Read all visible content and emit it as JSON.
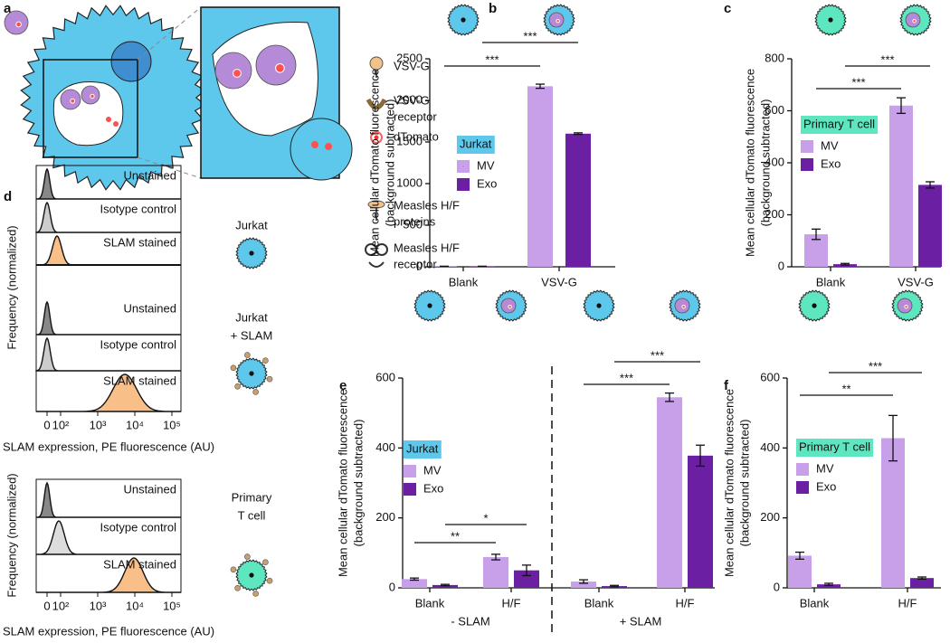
{
  "panel_a": {
    "label": "a",
    "legend": [
      {
        "lines": [
          "VSV-G"
        ]
      },
      {
        "lines": [
          "VSV-G",
          "receptor"
        ]
      },
      {
        "lines": [
          "dTomato"
        ]
      },
      {
        "lines": [
          "Measles H/F",
          "proteins"
        ]
      },
      {
        "lines": [
          "Measles H/F",
          "receptor"
        ]
      }
    ]
  },
  "panel_d": {
    "label": "d",
    "ylabel": "Frequency (normalized)",
    "xlabel": "SLAM expression, PE fluorescence (AU)",
    "xticks": [
      {
        "value": 0,
        "label": "0"
      },
      {
        "value": 100,
        "label": "10²"
      },
      {
        "value": 1000,
        "label": "10³"
      },
      {
        "value": 10000,
        "label": "10⁴"
      },
      {
        "value": 100000,
        "label": "10⁵"
      }
    ],
    "groups": [
      {
        "name": [
          "Jurkat"
        ],
        "rows": [
          "Unstained",
          "Isotype control",
          "SLAM stained"
        ]
      },
      {
        "name": [
          "Jurkat",
          "+ SLAM"
        ],
        "rows": [
          "Unstained",
          "Isotype control",
          "SLAM stained"
        ]
      },
      {
        "name": [
          "Primary",
          "T cell"
        ],
        "rows": [
          "Unstained",
          "Isotype control",
          "SLAM stained"
        ]
      }
    ]
  },
  "chart_data": [
    {
      "label": "b",
      "type": "bar",
      "ylabel": [
        "Mean cellular dTomato fluorescence",
        "(background subtracted)"
      ],
      "legend_title": "Jurkat",
      "legend_color": "#5ec8ec",
      "categories": [
        "Blank",
        "VSV-G"
      ],
      "series": [
        {
          "name": "MV",
          "color": "#c8a0ea",
          "values": [
            5,
            2170
          ],
          "errors": [
            2,
            25
          ]
        },
        {
          "name": "Exo",
          "color": "#6b1fa3",
          "values": [
            5,
            1600
          ],
          "errors": [
            2,
            10
          ]
        }
      ],
      "ylim": [
        0,
        2500
      ],
      "yticks": [
        0,
        500,
        1000,
        1500,
        2000,
        2500
      ],
      "annotations": [
        "***",
        "***"
      ]
    },
    {
      "label": "c",
      "type": "bar",
      "ylabel": [
        "Mean cellular dTomato fluorescence",
        "(background subtracted)"
      ],
      "legend_title": "Primary T cell",
      "legend_color": "#5ee6c0",
      "categories": [
        "Blank",
        "VSV-G"
      ],
      "series": [
        {
          "name": "MV",
          "color": "#c8a0ea",
          "values": [
            125,
            620
          ],
          "errors": [
            20,
            30
          ]
        },
        {
          "name": "Exo",
          "color": "#6b1fa3",
          "values": [
            10,
            315
          ],
          "errors": [
            3,
            12
          ]
        }
      ],
      "ylim": [
        0,
        800
      ],
      "yticks": [
        0,
        200,
        400,
        600,
        800
      ],
      "annotations": [
        "***",
        "***"
      ]
    },
    {
      "label": "e",
      "type": "bar",
      "ylabel": [
        "Mean cellular dTomato fluorescence",
        "(background subtracted)"
      ],
      "legend_title": "Jurkat",
      "legend_color": "#5ec8ec",
      "categories": [
        "Blank",
        "H/F",
        "Blank",
        "H/F"
      ],
      "group_labels": [
        "- SLAM",
        "+ SLAM"
      ],
      "series": [
        {
          "name": "MV",
          "color": "#c8a0ea",
          "values": [
            25,
            88,
            18,
            545
          ],
          "errors": [
            3,
            8,
            5,
            12
          ]
        },
        {
          "name": "Exo",
          "color": "#6b1fa3",
          "values": [
            8,
            50,
            5,
            378
          ],
          "errors": [
            2,
            15,
            2,
            30
          ]
        }
      ],
      "ylim": [
        0,
        600
      ],
      "yticks": [
        0,
        200,
        400,
        600
      ],
      "annotations": [
        "*",
        "**",
        "***",
        "***"
      ]
    },
    {
      "label": "f",
      "type": "bar",
      "ylabel": [
        "Mean cellular dTomato fluorescence",
        "(background subtracted)"
      ],
      "legend_title": "Primary T cell",
      "legend_color": "#5ee6c0",
      "categories": [
        "Blank",
        "H/F"
      ],
      "series": [
        {
          "name": "MV",
          "color": "#c8a0ea",
          "values": [
            92,
            428
          ],
          "errors": [
            10,
            65
          ]
        },
        {
          "name": "Exo",
          "color": "#6b1fa3",
          "values": [
            10,
            28
          ],
          "errors": [
            3,
            3
          ]
        }
      ],
      "ylim": [
        0,
        600
      ],
      "yticks": [
        0,
        200,
        400,
        600
      ],
      "annotations": [
        "***",
        "**"
      ]
    }
  ]
}
